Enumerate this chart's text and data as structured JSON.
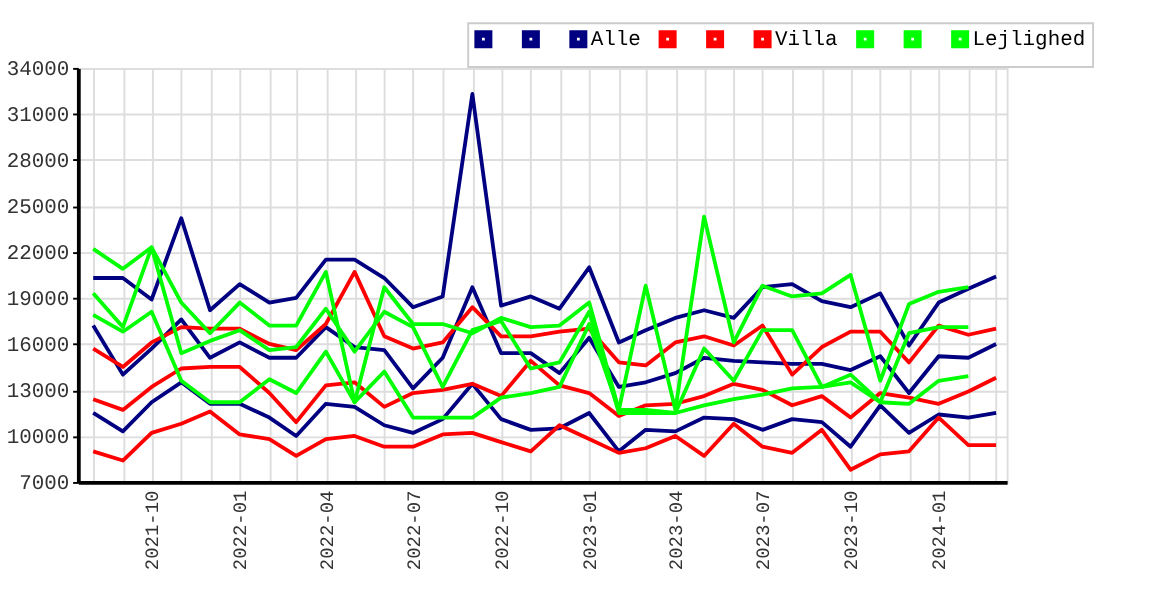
{
  "chart_data": {
    "type": "line",
    "x": [
      "2021-08",
      "2021-09",
      "2021-10",
      "2021-11",
      "2021-12",
      "2022-01",
      "2022-02",
      "2022-03",
      "2022-04",
      "2022-05",
      "2022-06",
      "2022-07",
      "2022-08",
      "2022-09",
      "2022-10",
      "2022-11",
      "2022-12",
      "2023-01",
      "2023-02",
      "2023-03",
      "2023-04",
      "2023-05",
      "2023-06",
      "2023-07",
      "2023-08",
      "2023-09",
      "2023-10",
      "2023-11",
      "2023-12",
      "2024-01",
      "2024-02",
      "2024-03"
    ],
    "series": [
      {
        "color": "#000080",
        "values": [
          20300,
          20300,
          18900,
          24200,
          18200,
          19900,
          18700,
          19000,
          21500,
          21500,
          20300,
          18400,
          19100,
          32300,
          18500,
          19100,
          18300,
          21000,
          16100,
          16900,
          17700,
          18200,
          17700,
          19700,
          19900,
          18800,
          18400,
          19300,
          15900,
          18700,
          19600,
          20400
        ]
      },
      {
        "color": "#000080",
        "values": [
          17200,
          14000,
          15700,
          17600,
          15100,
          16100,
          15100,
          15100,
          17100,
          15800,
          15600,
          13100,
          15100,
          19700,
          15400,
          15400,
          14100,
          16400,
          13200,
          13500,
          14100,
          15100,
          14900,
          14800,
          14700,
          14700,
          14300,
          15200,
          12800,
          15200,
          15100,
          16000
        ]
      },
      {
        "name": "Alle",
        "color": "#000080",
        "values": [
          11500,
          10300,
          12200,
          13500,
          12100,
          12100,
          11200,
          10000,
          12100,
          11900,
          10700,
          10200,
          11100,
          13400,
          11100,
          10400,
          10500,
          11500,
          9000,
          10400,
          10300,
          11200,
          11100,
          10400,
          11100,
          10900,
          9300,
          12000,
          10200,
          11400,
          11200,
          11500
        ]
      },
      {
        "color": "#ff0000",
        "values": [
          15700,
          14500,
          16100,
          17100,
          17000,
          17000,
          16000,
          15600,
          17300,
          20700,
          16500,
          15700,
          16100,
          18400,
          16500,
          16500,
          16800,
          17000,
          14800,
          14600,
          16100,
          16500,
          15900,
          17200,
          14000,
          15800,
          16800,
          16800,
          14800,
          17200,
          16600,
          17000
        ]
      },
      {
        "color": "#ff0000",
        "values": [
          12400,
          11700,
          13200,
          14400,
          14500,
          14500,
          12800,
          10900,
          13300,
          13500,
          11900,
          12800,
          13000,
          13400,
          12600,
          14900,
          13300,
          12800,
          11300,
          12000,
          12100,
          12600,
          13400,
          13000,
          12000,
          12600,
          11200,
          12800,
          12500,
          12100,
          12900,
          13800
        ]
      },
      {
        "name": "Villa",
        "color": "#ff0000",
        "values": [
          9000,
          8400,
          10200,
          10800,
          11600,
          10100,
          9800,
          8700,
          9800,
          10000,
          9300,
          9300,
          10100,
          10200,
          9600,
          9000,
          10700,
          9800,
          8900,
          9200,
          10000,
          8700,
          10800,
          9300,
          8900,
          10400,
          7800,
          8800,
          9000,
          11200,
          9400,
          9400
        ]
      },
      {
        "color": "#00ff00",
        "values": [
          22200,
          20900,
          22300,
          18700,
          16700,
          18700,
          17200,
          17200,
          20700,
          12200,
          19700,
          17300,
          17300,
          16700,
          17700,
          17100,
          17200,
          18700,
          11700,
          19800,
          11700,
          24300,
          16100,
          19800,
          19100,
          19300,
          20500,
          13600,
          18600,
          19400,
          19700,
          null
        ]
      },
      {
        "color": "#00ff00",
        "values": [
          19300,
          17100,
          22300,
          15400,
          16200,
          16900,
          15600,
          15800,
          18300,
          15500,
          18100,
          17100,
          13200,
          16900,
          17500,
          14400,
          14800,
          18100,
          11500,
          11500,
          11500,
          15700,
          13600,
          16900,
          16900,
          13200,
          14000,
          12200,
          16700,
          17100,
          17100,
          null
        ]
      },
      {
        "name": "Lejlighed",
        "color": "#00ff00",
        "values": [
          17900,
          16800,
          18100,
          13600,
          12200,
          12200,
          13700,
          12800,
          15500,
          12200,
          14200,
          11200,
          11200,
          11200,
          12500,
          12800,
          13200,
          17300,
          11700,
          11700,
          11500,
          12000,
          12400,
          12700,
          13100,
          13200,
          13500,
          12200,
          12100,
          13600,
          13900,
          null
        ]
      }
    ],
    "ylim": [
      7000,
      34000
    ],
    "yticks": [
      7000,
      10000,
      13000,
      16000,
      19000,
      22000,
      25000,
      28000,
      31000,
      34000
    ],
    "xlim": [
      "2021-07-16",
      "2024-03-12"
    ],
    "xticks": [
      {
        "value": "2021-08",
        "label": null
      },
      {
        "value": "2021-09",
        "label": null
      },
      "2021-10",
      {
        "value": "2021-11",
        "label": null
      },
      {
        "value": "2021-12",
        "label": null
      },
      "2022-01",
      {
        "value": "2022-02",
        "label": null
      },
      {
        "value": "2022-03",
        "label": null
      },
      "2022-04",
      {
        "value": "2022-05",
        "label": null
      },
      {
        "value": "2022-06",
        "label": null
      },
      "2022-07",
      {
        "value": "2022-08",
        "label": null
      },
      {
        "value": "2022-09",
        "label": null
      },
      "2022-10",
      {
        "value": "2022-11",
        "label": null
      },
      {
        "value": "2022-12",
        "label": null
      },
      "2023-01",
      {
        "value": "2023-02",
        "label": null
      },
      {
        "value": "2023-03",
        "label": null
      },
      "2023-04",
      {
        "value": "2023-05",
        "label": null
      },
      {
        "value": "2023-06",
        "label": null
      },
      "2023-07",
      {
        "value": "2023-08",
        "label": null
      },
      {
        "value": "2023-09",
        "label": null
      },
      "2023-10",
      {
        "value": "2023-11",
        "label": null
      },
      {
        "value": "2023-12",
        "label": null
      },
      "2024-01",
      {
        "value": "2024-02",
        "label": null
      },
      {
        "value": "2024-03",
        "label": null
      }
    ],
    "grid": true,
    "legend": "top right",
    "marker": "none",
    "line_style": "solid"
  }
}
